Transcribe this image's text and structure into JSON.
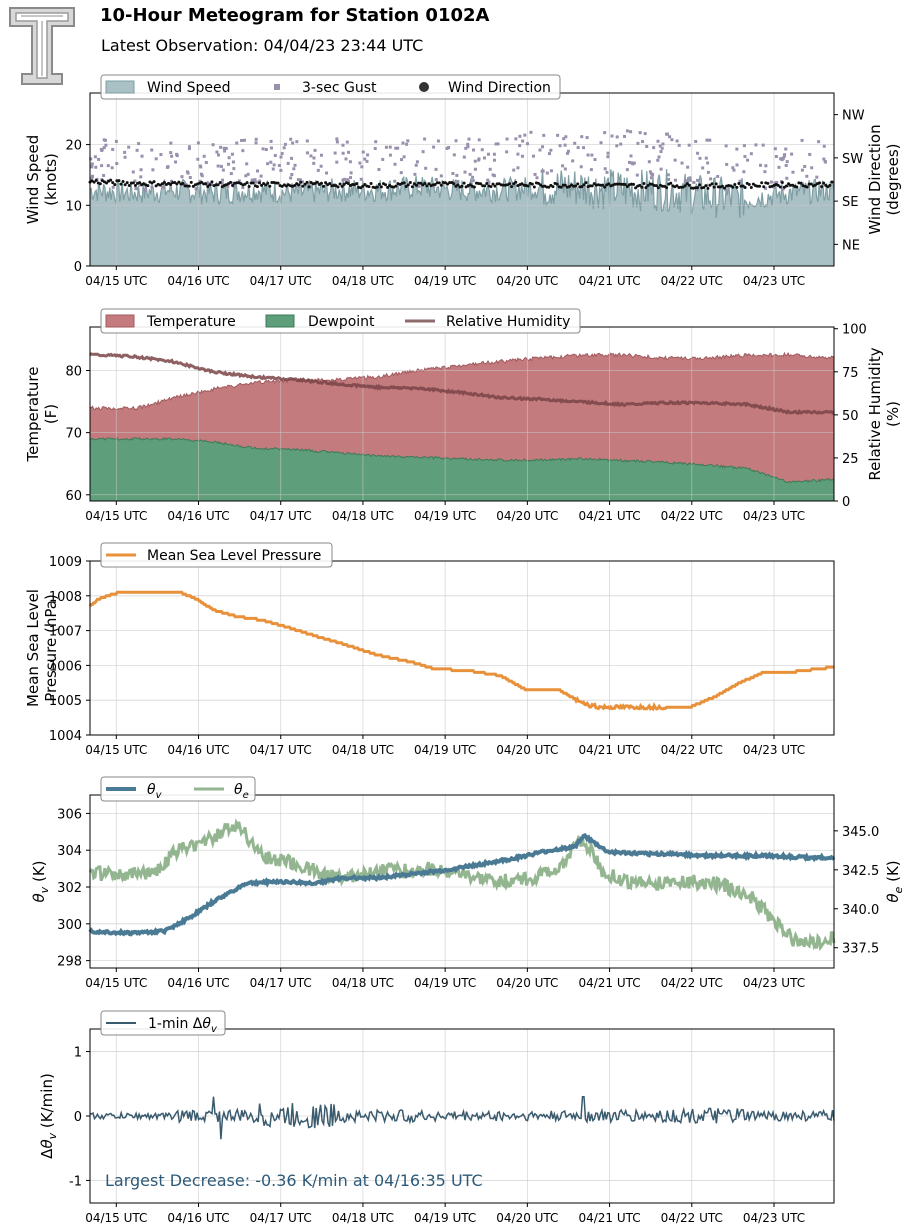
{
  "header": {
    "title": "10-Hour Meteogram for Station 0102A",
    "subtitle": "Latest Observation: 04/04/23 23:44 UTC",
    "logo_icon": "texas-tech-double-t-logo"
  },
  "colors": {
    "wind_fill": "#a9c0c5",
    "wind_line": "#7f9ea4",
    "gust": "#9a90ad",
    "direction": "#111111",
    "temperature": "#c47b7e",
    "dewpoint": "#5e9e7a",
    "rh": "#8d6a6c",
    "pressure": "#e8913a",
    "theta_v": "#4a7a94",
    "theta_e": "#93b691",
    "delta": "#3a5a6e",
    "annotation": "#2d5a78"
  },
  "chart_data": [
    {
      "id": "wind",
      "type": "area",
      "x_ticks": [
        "04/15 UTC",
        "04/16 UTC",
        "04/17 UTC",
        "04/18 UTC",
        "04/19 UTC",
        "04/20 UTC",
        "04/21 UTC",
        "04/22 UTC",
        "04/23 UTC"
      ],
      "x_range": [
        0,
        9.05
      ],
      "ylabel": "Wind Speed\n(knots)",
      "ylim": [
        0,
        28.5
      ],
      "y_ticks": [
        0,
        10,
        20
      ],
      "y2label": "Wind Direction\n(degrees)",
      "y2_ticks": [
        "NE",
        "SE",
        "SW",
        "NW"
      ],
      "y2_tick_values": [
        45,
        135,
        225,
        315
      ],
      "y2lim": [
        0,
        360
      ],
      "grid": true,
      "legend": [
        "Wind Speed",
        "3-sec Gust",
        "Wind Direction"
      ],
      "legend_position": "top-left",
      "series": [
        {
          "name": "Wind Speed",
          "x": [
            0,
            0.5,
            1,
            1.5,
            2,
            2.5,
            3,
            3.5,
            4,
            4.5,
            5,
            5.5,
            6,
            6.5,
            7,
            7.5,
            8,
            8.5,
            9.05
          ],
          "values": [
            12.5,
            12,
            12.5,
            12,
            12.5,
            12,
            12.5,
            12.5,
            13,
            12.5,
            12.5,
            13,
            13,
            12.5,
            12.5,
            11.5,
            11,
            12,
            12.5
          ]
        },
        {
          "name": "3-sec Gust",
          "x": [
            0,
            0.5,
            1,
            1.5,
            2,
            2.5,
            3,
            3.5,
            4,
            4.5,
            5,
            5.5,
            6,
            6.5,
            7,
            7.5,
            8,
            8.5,
            9.05
          ],
          "values": [
            17,
            16.5,
            16.5,
            16.5,
            17,
            17,
            17,
            17,
            17,
            17,
            17,
            18.5,
            19.5,
            19,
            18,
            17,
            16,
            16.5,
            17.5
          ]
        },
        {
          "name": "Wind Direction",
          "x": [
            0,
            0.5,
            1,
            1.5,
            2,
            2.5,
            3,
            3.5,
            4,
            4.5,
            5,
            5.5,
            6,
            6.5,
            7,
            7.5,
            8,
            8.5,
            9.05
          ],
          "values": [
            176,
            172,
            171,
            170,
            169,
            170,
            169,
            167,
            170,
            169,
            170,
            168,
            169,
            167,
            168,
            166,
            168,
            169,
            170
          ]
        }
      ]
    },
    {
      "id": "thermo",
      "type": "area",
      "x_ticks": [
        "04/15 UTC",
        "04/16 UTC",
        "04/17 UTC",
        "04/18 UTC",
        "04/19 UTC",
        "04/20 UTC",
        "04/21 UTC",
        "04/22 UTC",
        "04/23 UTC"
      ],
      "x_range": [
        0,
        9.05
      ],
      "ylabel": "Temperature\n(F)",
      "ylim": [
        59,
        87
      ],
      "y_ticks": [
        60,
        70,
        80
      ],
      "y2label": "Relative Humidity\n(%)",
      "y2lim": [
        0,
        101
      ],
      "y2_ticks": [
        0,
        25,
        50,
        75,
        100
      ],
      "grid": true,
      "legend": [
        "Temperature",
        "Dewpoint",
        "Relative Humidity"
      ],
      "legend_position": "top-left",
      "series": [
        {
          "name": "Temperature",
          "x": [
            0,
            0.35,
            0.6,
            1,
            1.5,
            2,
            2.5,
            3,
            3.5,
            4,
            4.5,
            5,
            5.5,
            6,
            6.5,
            7,
            7.5,
            8,
            8.5,
            9.05
          ],
          "values": [
            74,
            73.8,
            74,
            75.5,
            77,
            78,
            78.5,
            78.5,
            79,
            80,
            80.8,
            81.5,
            82,
            82.5,
            82.5,
            82,
            82,
            82.5,
            82.5,
            82
          ]
        },
        {
          "name": "Dewpoint",
          "x": [
            0,
            0.5,
            1,
            1.5,
            2,
            2.5,
            3,
            3.5,
            4,
            4.5,
            5,
            5.5,
            6,
            6.5,
            7,
            7.5,
            8,
            8.5,
            9.05
          ],
          "values": [
            69,
            69,
            69,
            68.5,
            67.5,
            67.3,
            66.8,
            66.3,
            66,
            65.8,
            65.6,
            65.6,
            65.8,
            65.5,
            65.2,
            64.8,
            64.2,
            62,
            62.5
          ]
        },
        {
          "name": "Relative Humidity",
          "x": [
            0,
            0.5,
            1,
            1.5,
            2,
            2.5,
            3,
            3.5,
            4,
            4.5,
            5,
            5.5,
            6,
            6.5,
            7,
            7.5,
            8,
            8.5,
            9.05
          ],
          "values": [
            85,
            84,
            81,
            75,
            72,
            70.5,
            68,
            66,
            65.5,
            63,
            60,
            59,
            57.5,
            56,
            57,
            57,
            56,
            51.5,
            51.5
          ]
        }
      ]
    },
    {
      "id": "pressure",
      "type": "line",
      "x_ticks": [
        "04/15 UTC",
        "04/16 UTC",
        "04/17 UTC",
        "04/18 UTC",
        "04/19 UTC",
        "04/20 UTC",
        "04/21 UTC",
        "04/22 UTC",
        "04/23 UTC"
      ],
      "x_range": [
        0,
        9.05
      ],
      "ylabel": "Mean Sea Level\nPressure (hPa)",
      "ylim": [
        1004,
        1009
      ],
      "y_ticks": [
        1004,
        1005,
        1006,
        1007,
        1008,
        1009
      ],
      "grid": true,
      "legend": [
        "Mean Sea Level Pressure"
      ],
      "legend_position": "top-left",
      "series": [
        {
          "name": "Mean Sea Level Pressure",
          "x": [
            0,
            0.1,
            0.35,
            0.7,
            1.1,
            1.3,
            1.5,
            1.8,
            2.1,
            2.4,
            2.8,
            3.1,
            3.5,
            3.9,
            4.2,
            4.6,
            5.0,
            5.3,
            5.7,
            6.0,
            6.2,
            6.6,
            6.9,
            7.3,
            7.6,
            7.9,
            8.2,
            8.5,
            9.05
          ],
          "values": [
            1007.7,
            1007.9,
            1008.1,
            1008.1,
            1008.1,
            1007.9,
            1007.6,
            1007.4,
            1007.3,
            1007.1,
            1006.8,
            1006.6,
            1006.3,
            1006.1,
            1005.9,
            1005.85,
            1005.7,
            1005.3,
            1005.3,
            1004.9,
            1004.8,
            1004.8,
            1004.8,
            1004.8,
            1005.1,
            1005.5,
            1005.8,
            1005.8,
            1005.95
          ]
        }
      ]
    },
    {
      "id": "theta",
      "type": "line",
      "x_ticks": [
        "04/15 UTC",
        "04/16 UTC",
        "04/17 UTC",
        "04/18 UTC",
        "04/19 UTC",
        "04/20 UTC",
        "04/21 UTC",
        "04/22 UTC",
        "04/23 UTC"
      ],
      "x_range": [
        0,
        9.05
      ],
      "ylabel": "θv (K)",
      "ylim": [
        297.6,
        307
      ],
      "y_ticks": [
        298,
        300,
        302,
        304,
        306
      ],
      "y2label": "θe (K)",
      "y2lim": [
        336.2,
        347.3
      ],
      "y2_ticks": [
        337.5,
        340.0,
        342.5,
        345.0
      ],
      "grid": true,
      "legend": [
        "θv",
        "θe"
      ],
      "legend_position": "top-left",
      "series": [
        {
          "name": "θv",
          "x": [
            0,
            0.5,
            0.9,
            1.2,
            1.5,
            1.9,
            2.3,
            2.7,
            3.1,
            3.5,
            3.9,
            4.3,
            4.7,
            5.1,
            5.5,
            5.9,
            6.0,
            6.3,
            6.7,
            7.1,
            7.5,
            7.9,
            8.3,
            8.7,
            9.05
          ],
          "values": [
            299.6,
            299.5,
            299.6,
            300.3,
            301.2,
            302.2,
            302.3,
            302.2,
            302.5,
            302.5,
            302.7,
            302.9,
            303.2,
            303.5,
            303.9,
            304.2,
            304.8,
            303.9,
            303.8,
            303.8,
            303.7,
            303.7,
            303.7,
            303.6,
            303.6
          ]
        },
        {
          "name": "θe",
          "x": [
            0,
            0.4,
            0.8,
            1.0,
            1.2,
            1.5,
            1.8,
            1.95,
            2.1,
            2.4,
            2.7,
            3.0,
            3.3,
            3.6,
            3.9,
            4.2,
            4.5,
            4.8,
            5.1,
            5.4,
            5.7,
            6.0,
            6.25,
            6.5,
            6.8,
            7.2,
            7.6,
            8.0,
            8.3,
            8.6,
            8.9,
            9.05
          ],
          "values": [
            342.3,
            342.1,
            342.4,
            343.5,
            344,
            344.6,
            345.5,
            344.4,
            343.3,
            343,
            342.5,
            342,
            342.2,
            342.6,
            342.4,
            342.6,
            342.2,
            341.8,
            341.8,
            342.0,
            342.6,
            344.5,
            342.3,
            341.8,
            341.6,
            341.8,
            341.6,
            341,
            339.3,
            337.8,
            337.8,
            338.2
          ]
        }
      ]
    },
    {
      "id": "delta",
      "type": "line",
      "x_ticks": [
        "04/15 UTC",
        "04/16 UTC",
        "04/17 UTC",
        "04/18 UTC",
        "04/19 UTC",
        "04/20 UTC",
        "04/21 UTC",
        "04/22 UTC",
        "04/23 UTC"
      ],
      "x_range": [
        0,
        9.05
      ],
      "ylabel": "Δθv (K/min)",
      "ylim": [
        -1.35,
        1.35
      ],
      "y_ticks": [
        -1,
        0,
        1
      ],
      "grid": true,
      "legend": [
        "1-min Δθv"
      ],
      "legend_position": "top-left",
      "annotation": "Largest Decrease: -0.36 K/min at 04/16:35 UTC",
      "series": [
        {
          "name": "1-min Δθv",
          "amplitude_by_day": [
            0.05,
            0.1,
            0.2,
            0.1,
            0.08,
            0.08,
            0.1,
            0.12,
            0.08,
            0.1
          ],
          "min": -0.36,
          "min_x": 1.6
        }
      ]
    }
  ]
}
